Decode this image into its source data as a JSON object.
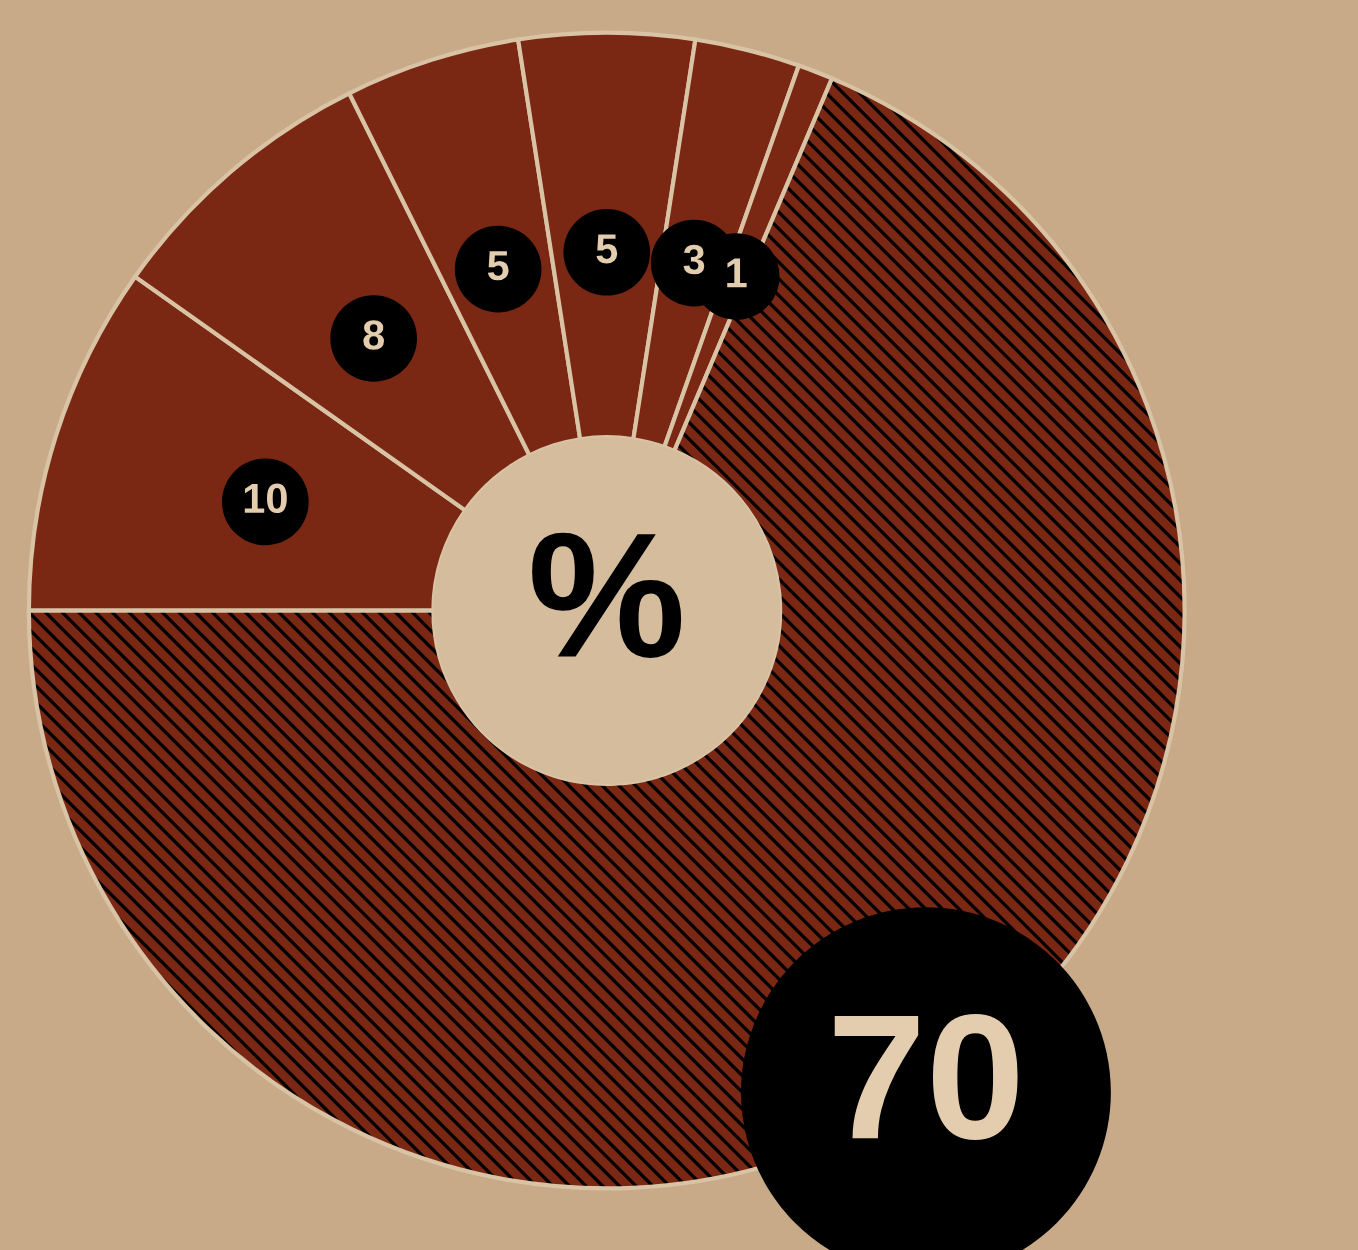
{
  "chart_data": {
    "type": "donut",
    "categories": [
      null,
      null,
      null,
      null,
      null,
      null,
      null
    ],
    "values": [
      10,
      8,
      5,
      5,
      3,
      1,
      70
    ],
    "colors": [
      "#7a2714",
      "#7a2714",
      "#7a2714",
      "#7a2714",
      "#7a2714",
      "#7a2714",
      "#7a2714"
    ],
    "data_labels": true,
    "annotations": [
      "%"
    ]
  }
}
